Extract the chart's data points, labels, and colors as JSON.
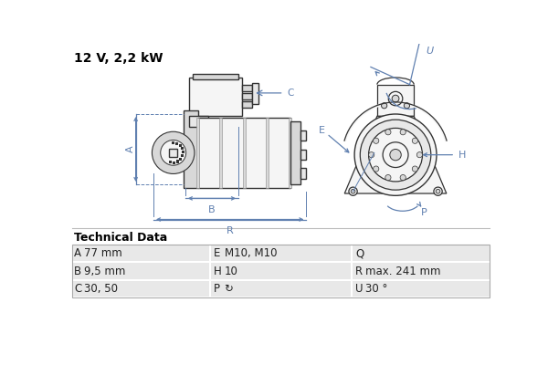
{
  "title": "12 V, 2,2 kW",
  "bg_color": "#ffffff",
  "blue": "#6080b0",
  "dark_gray": "#333333",
  "mid_gray": "#888888",
  "fill_light": "#f5f5f5",
  "fill_mid": "#e8e8e8",
  "fill_dark": "#d8d8d8",
  "table_header": "Technical Data",
  "table_rows": [
    [
      "A",
      "77 mm",
      "E",
      "M10, M10",
      "Q",
      ""
    ],
    [
      "B",
      "9,5 mm",
      "H",
      "10",
      "R",
      "max. 241 mm"
    ],
    [
      "C",
      "30, 50",
      "P",
      "↻",
      "U",
      "30 °"
    ]
  ]
}
